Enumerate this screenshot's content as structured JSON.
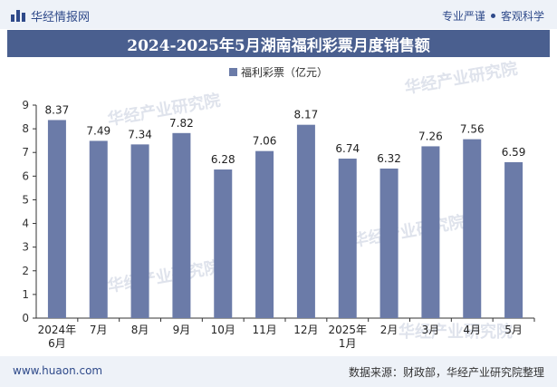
{
  "header": {
    "brand": "华经情报网",
    "tagline_left": "专业严谨",
    "tagline_right": "客观科学"
  },
  "title": "2024-2025年5月湖南福利彩票月度销售额",
  "legend": {
    "label": "福利彩票（亿元）"
  },
  "footer": {
    "website": "www.huaon.com",
    "source": "数据来源：财政部，华经产业研究院整理"
  },
  "colors": {
    "bar": "#6b7ba8",
    "title_bg": "#4a5f8f",
    "accent": "#2f4a8a"
  },
  "chart_data": {
    "type": "bar",
    "categories": [
      "2024年\n6月",
      "7月",
      "8月",
      "9月",
      "10月",
      "11月",
      "12月",
      "2025年\n1月",
      "2月",
      "3月",
      "4月",
      "5月"
    ],
    "series": [
      {
        "name": "福利彩票（亿元）",
        "values": [
          8.37,
          7.49,
          7.34,
          7.82,
          6.28,
          7.06,
          8.17,
          6.74,
          6.32,
          7.26,
          7.56,
          6.59
        ]
      }
    ],
    "ylim": [
      0,
      9
    ],
    "yticks": [
      0,
      1,
      2,
      3,
      4,
      5,
      6,
      7,
      8,
      9
    ],
    "grid": false,
    "legend_position": "top-center"
  }
}
